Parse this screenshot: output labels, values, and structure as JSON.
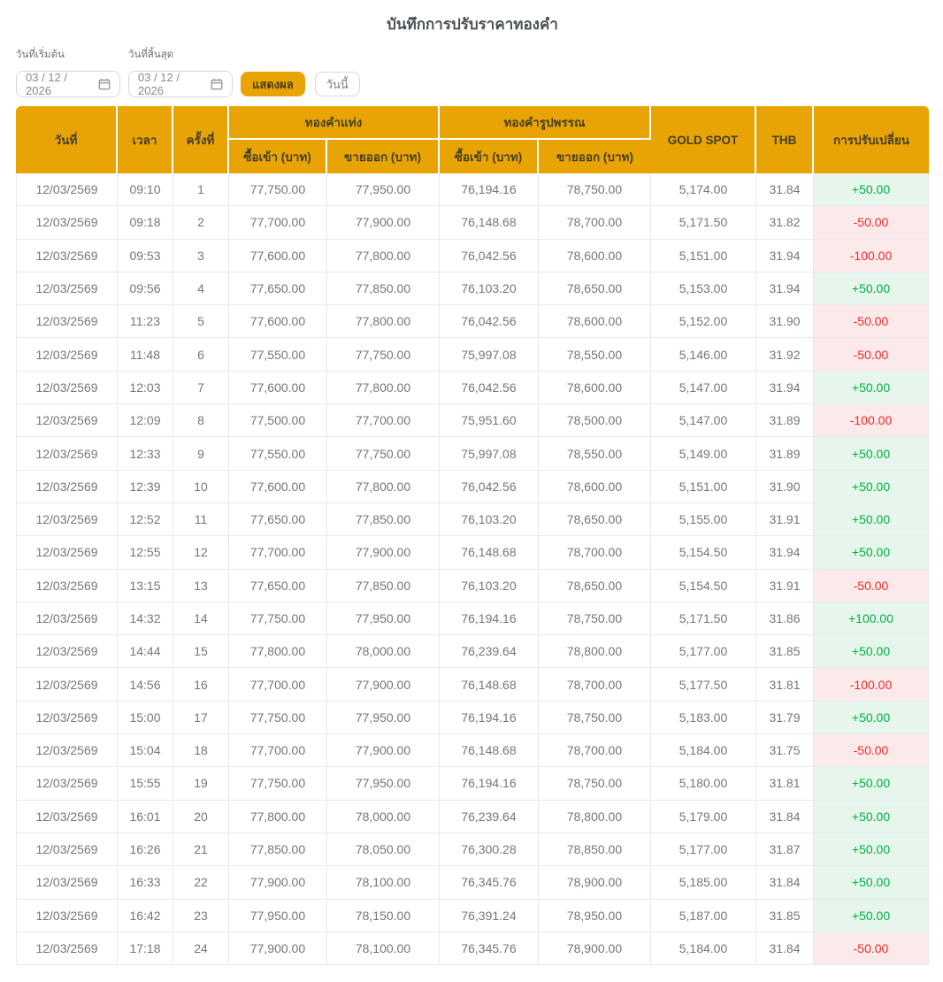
{
  "page": {
    "title": "บันทึกการปรับราคาทองคำ"
  },
  "filters": {
    "start_date_label": "วันที่เริ่มต้น",
    "end_date_label": "วันที่สิ้นสุด",
    "start_date_value": "03 / 12 / 2026",
    "end_date_value": "03 / 12 / 2026",
    "show_button_label": "แสดงผล",
    "today_button_label": "วันนี้"
  },
  "colors": {
    "accent_gold": "#E8A405",
    "positive_text": "#00B140",
    "positive_bg": "#E6F6EC",
    "negative_text": "#F02B2B",
    "negative_bg": "#FCE9E9"
  },
  "table": {
    "headers": {
      "date": "วันที่",
      "time": "เวลา",
      "round": "ครั้งที่",
      "gold_bar": "ทองคำแท่ง",
      "gold_ornament": "ทองคำรูปพรรณ",
      "buy": "ซื้อเข้า (บาท)",
      "sell": "ขายออก (บาท)",
      "gold_spot": "GOLD SPOT",
      "thb": "THB",
      "change": "การปรับเปลี่ยน"
    },
    "rows": [
      {
        "date": "12/03/2569",
        "time": "09:10",
        "round": "1",
        "bar_buy": "77,750.00",
        "bar_sell": "77,950.00",
        "orn_buy": "76,194.16",
        "orn_sell": "78,750.00",
        "spot": "5,174.00",
        "thb": "31.84",
        "change": "+50.00"
      },
      {
        "date": "12/03/2569",
        "time": "09:18",
        "round": "2",
        "bar_buy": "77,700.00",
        "bar_sell": "77,900.00",
        "orn_buy": "76,148.68",
        "orn_sell": "78,700.00",
        "spot": "5,171.50",
        "thb": "31.82",
        "change": "-50.00"
      },
      {
        "date": "12/03/2569",
        "time": "09:53",
        "round": "3",
        "bar_buy": "77,600.00",
        "bar_sell": "77,800.00",
        "orn_buy": "76,042.56",
        "orn_sell": "78,600.00",
        "spot": "5,151.00",
        "thb": "31.94",
        "change": "-100.00"
      },
      {
        "date": "12/03/2569",
        "time": "09:56",
        "round": "4",
        "bar_buy": "77,650.00",
        "bar_sell": "77,850.00",
        "orn_buy": "76,103.20",
        "orn_sell": "78,650.00",
        "spot": "5,153.00",
        "thb": "31.94",
        "change": "+50.00"
      },
      {
        "date": "12/03/2569",
        "time": "11:23",
        "round": "5",
        "bar_buy": "77,600.00",
        "bar_sell": "77,800.00",
        "orn_buy": "76,042.56",
        "orn_sell": "78,600.00",
        "spot": "5,152.00",
        "thb": "31.90",
        "change": "-50.00"
      },
      {
        "date": "12/03/2569",
        "time": "11:48",
        "round": "6",
        "bar_buy": "77,550.00",
        "bar_sell": "77,750.00",
        "orn_buy": "75,997.08",
        "orn_sell": "78,550.00",
        "spot": "5,146.00",
        "thb": "31.92",
        "change": "-50.00"
      },
      {
        "date": "12/03/2569",
        "time": "12:03",
        "round": "7",
        "bar_buy": "77,600.00",
        "bar_sell": "77,800.00",
        "orn_buy": "76,042.56",
        "orn_sell": "78,600.00",
        "spot": "5,147.00",
        "thb": "31.94",
        "change": "+50.00"
      },
      {
        "date": "12/03/2569",
        "time": "12:09",
        "round": "8",
        "bar_buy": "77,500.00",
        "bar_sell": "77,700.00",
        "orn_buy": "75,951.60",
        "orn_sell": "78,500.00",
        "spot": "5,147.00",
        "thb": "31.89",
        "change": "-100.00"
      },
      {
        "date": "12/03/2569",
        "time": "12:33",
        "round": "9",
        "bar_buy": "77,550.00",
        "bar_sell": "77,750.00",
        "orn_buy": "75,997.08",
        "orn_sell": "78,550.00",
        "spot": "5,149.00",
        "thb": "31.89",
        "change": "+50.00"
      },
      {
        "date": "12/03/2569",
        "time": "12:39",
        "round": "10",
        "bar_buy": "77,600.00",
        "bar_sell": "77,800.00",
        "orn_buy": "76,042.56",
        "orn_sell": "78,600.00",
        "spot": "5,151.00",
        "thb": "31.90",
        "change": "+50.00"
      },
      {
        "date": "12/03/2569",
        "time": "12:52",
        "round": "11",
        "bar_buy": "77,650.00",
        "bar_sell": "77,850.00",
        "orn_buy": "76,103.20",
        "orn_sell": "78,650.00",
        "spot": "5,155.00",
        "thb": "31.91",
        "change": "+50.00"
      },
      {
        "date": "12/03/2569",
        "time": "12:55",
        "round": "12",
        "bar_buy": "77,700.00",
        "bar_sell": "77,900.00",
        "orn_buy": "76,148.68",
        "orn_sell": "78,700.00",
        "spot": "5,154.50",
        "thb": "31.94",
        "change": "+50.00"
      },
      {
        "date": "12/03/2569",
        "time": "13:15",
        "round": "13",
        "bar_buy": "77,650.00",
        "bar_sell": "77,850.00",
        "orn_buy": "76,103.20",
        "orn_sell": "78,650.00",
        "spot": "5,154.50",
        "thb": "31.91",
        "change": "-50.00"
      },
      {
        "date": "12/03/2569",
        "time": "14:32",
        "round": "14",
        "bar_buy": "77,750.00",
        "bar_sell": "77,950.00",
        "orn_buy": "76,194.16",
        "orn_sell": "78,750.00",
        "spot": "5,171.50",
        "thb": "31.86",
        "change": "+100.00"
      },
      {
        "date": "12/03/2569",
        "time": "14:44",
        "round": "15",
        "bar_buy": "77,800.00",
        "bar_sell": "78,000.00",
        "orn_buy": "76,239.64",
        "orn_sell": "78,800.00",
        "spot": "5,177.00",
        "thb": "31.85",
        "change": "+50.00"
      },
      {
        "date": "12/03/2569",
        "time": "14:56",
        "round": "16",
        "bar_buy": "77,700.00",
        "bar_sell": "77,900.00",
        "orn_buy": "76,148.68",
        "orn_sell": "78,700.00",
        "spot": "5,177.50",
        "thb": "31.81",
        "change": "-100.00"
      },
      {
        "date": "12/03/2569",
        "time": "15:00",
        "round": "17",
        "bar_buy": "77,750.00",
        "bar_sell": "77,950.00",
        "orn_buy": "76,194.16",
        "orn_sell": "78,750.00",
        "spot": "5,183.00",
        "thb": "31.79",
        "change": "+50.00"
      },
      {
        "date": "12/03/2569",
        "time": "15:04",
        "round": "18",
        "bar_buy": "77,700.00",
        "bar_sell": "77,900.00",
        "orn_buy": "76,148.68",
        "orn_sell": "78,700.00",
        "spot": "5,184.00",
        "thb": "31.75",
        "change": "-50.00"
      },
      {
        "date": "12/03/2569",
        "time": "15:55",
        "round": "19",
        "bar_buy": "77,750.00",
        "bar_sell": "77,950.00",
        "orn_buy": "76,194.16",
        "orn_sell": "78,750.00",
        "spot": "5,180.00",
        "thb": "31.81",
        "change": "+50.00"
      },
      {
        "date": "12/03/2569",
        "time": "16:01",
        "round": "20",
        "bar_buy": "77,800.00",
        "bar_sell": "78,000.00",
        "orn_buy": "76,239.64",
        "orn_sell": "78,800.00",
        "spot": "5,179.00",
        "thb": "31.84",
        "change": "+50.00"
      },
      {
        "date": "12/03/2569",
        "time": "16:26",
        "round": "21",
        "bar_buy": "77,850.00",
        "bar_sell": "78,050.00",
        "orn_buy": "76,300.28",
        "orn_sell": "78,850.00",
        "spot": "5,177.00",
        "thb": "31.87",
        "change": "+50.00"
      },
      {
        "date": "12/03/2569",
        "time": "16:33",
        "round": "22",
        "bar_buy": "77,900.00",
        "bar_sell": "78,100.00",
        "orn_buy": "76,345.76",
        "orn_sell": "78,900.00",
        "spot": "5,185.00",
        "thb": "31.84",
        "change": "+50.00"
      },
      {
        "date": "12/03/2569",
        "time": "16:42",
        "round": "23",
        "bar_buy": "77,950.00",
        "bar_sell": "78,150.00",
        "orn_buy": "76,391.24",
        "orn_sell": "78,950.00",
        "spot": "5,187.00",
        "thb": "31.85",
        "change": "+50.00"
      },
      {
        "date": "12/03/2569",
        "time": "17:18",
        "round": "24",
        "bar_buy": "77,900.00",
        "bar_sell": "78,100.00",
        "orn_buy": "76,345.76",
        "orn_sell": "78,900.00",
        "spot": "5,184.00",
        "thb": "31.84",
        "change": "-50.00"
      }
    ]
  }
}
